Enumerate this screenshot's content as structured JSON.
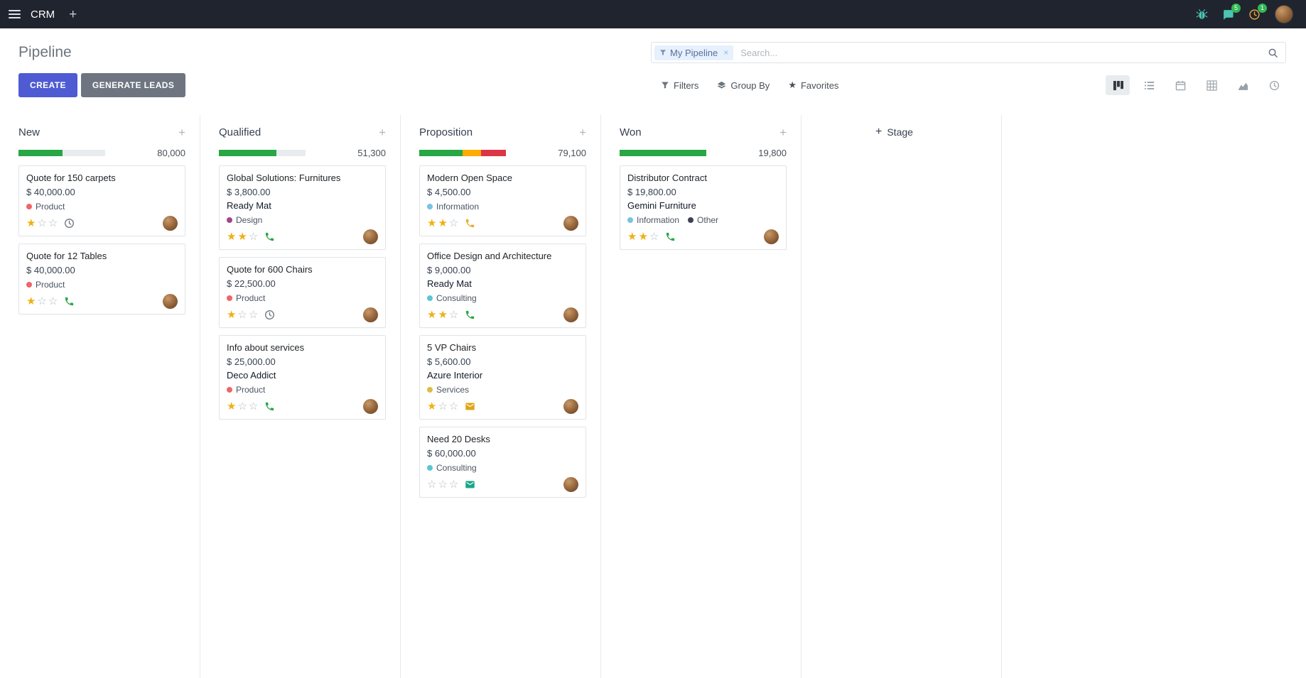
{
  "navbar": {
    "app_name": "CRM",
    "messages_badge": "5",
    "activities_badge": "1"
  },
  "control_panel": {
    "title": "Pipeline",
    "create_label": "CREATE",
    "generate_leads_label": "GENERATE LEADS",
    "search": {
      "facet_label": "My Pipeline",
      "placeholder": "Search...",
      "remove_label": "×"
    },
    "filters_label": "Filters",
    "group_by_label": "Group By",
    "favorites_label": "Favorites",
    "views": {
      "active": "kanban",
      "options": [
        "kanban",
        "list",
        "calendar",
        "pivot",
        "graph",
        "activity"
      ]
    }
  },
  "board": {
    "add_stage_label": "Stage",
    "columns": [
      {
        "name": "New",
        "total": "80,000",
        "progress": [
          {
            "color": "#28a745",
            "pct": 51
          }
        ],
        "cards": [
          {
            "title": "Quote for 150 carpets",
            "amount": "$ 40,000.00",
            "partner": null,
            "tags": [
              {
                "label": "Product",
                "color": "#ef6567"
              }
            ],
            "stars": 1,
            "activity": {
              "icon": "clock",
              "color": "#6c757d"
            }
          },
          {
            "title": "Quote for 12 Tables",
            "amount": "$ 40,000.00",
            "partner": null,
            "tags": [
              {
                "label": "Product",
                "color": "#ef6567"
              }
            ],
            "stars": 1,
            "activity": {
              "icon": "phone",
              "color": "#28a745"
            }
          }
        ]
      },
      {
        "name": "Qualified",
        "total": "51,300",
        "progress": [
          {
            "color": "#28a745",
            "pct": 66
          }
        ],
        "cards": [
          {
            "title": "Global Solutions: Furnitures",
            "amount": "$ 3,800.00",
            "partner": "Ready Mat",
            "tags": [
              {
                "label": "Design",
                "color": "#a24689"
              }
            ],
            "stars": 2,
            "activity": {
              "icon": "phone",
              "color": "#28a745"
            }
          },
          {
            "title": "Quote for 600 Chairs",
            "amount": "$ 22,500.00",
            "partner": null,
            "tags": [
              {
                "label": "Product",
                "color": "#ef6567"
              }
            ],
            "stars": 1,
            "activity": {
              "icon": "clock",
              "color": "#6c757d"
            }
          },
          {
            "title": "Info about services",
            "amount": "$ 25,000.00",
            "partner": "Deco Addict",
            "tags": [
              {
                "label": "Product",
                "color": "#ef6567"
              }
            ],
            "stars": 1,
            "activity": {
              "icon": "phone",
              "color": "#28a745"
            }
          }
        ]
      },
      {
        "name": "Proposition",
        "total": "79,100",
        "progress": [
          {
            "color": "#28a745",
            "pct": 50
          },
          {
            "color": "#ffac00",
            "pct": 21
          },
          {
            "color": "#dc3545",
            "pct": 29
          }
        ],
        "cards": [
          {
            "title": "Modern Open Space",
            "amount": "$ 4,500.00",
            "partner": null,
            "tags": [
              {
                "label": "Information",
                "color": "#76c4e0"
              }
            ],
            "stars": 2,
            "activity": {
              "icon": "phone",
              "color": "#e8ab2d"
            }
          },
          {
            "title": "Office Design and Architecture",
            "amount": "$ 9,000.00",
            "partner": "Ready Mat",
            "tags": [
              {
                "label": "Consulting",
                "color": "#5bc6d0"
              }
            ],
            "stars": 2,
            "activity": {
              "icon": "phone",
              "color": "#28a745"
            }
          },
          {
            "title": "5 VP Chairs",
            "amount": "$ 5,600.00",
            "partner": "Azure Interior",
            "tags": [
              {
                "label": "Services",
                "color": "#d9bf45"
              }
            ],
            "stars": 1,
            "activity": {
              "icon": "envelope",
              "color": "#e0a516"
            }
          },
          {
            "title": "Need 20 Desks",
            "amount": "$ 60,000.00",
            "partner": null,
            "tags": [
              {
                "label": "Consulting",
                "color": "#5bc6d0"
              }
            ],
            "stars": 0,
            "activity": {
              "icon": "envelope",
              "color": "#18a689"
            }
          }
        ]
      },
      {
        "name": "Won",
        "total": "19,800",
        "progress": [
          {
            "color": "#28a745",
            "pct": 100
          }
        ],
        "cards": [
          {
            "title": "Distributor Contract",
            "amount": "$ 19,800.00",
            "partner": "Gemini Furniture",
            "tags": [
              {
                "label": "Information",
                "color": "#76c4e0"
              },
              {
                "label": "Other",
                "color": "#3b4252"
              }
            ],
            "stars": 2,
            "activity": {
              "icon": "phone",
              "color": "#28a745"
            }
          }
        ]
      }
    ]
  }
}
